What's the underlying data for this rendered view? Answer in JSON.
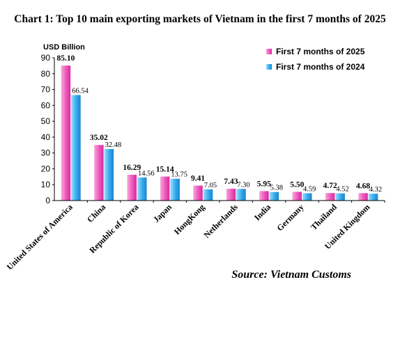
{
  "chart_data": {
    "type": "bar",
    "title": "Chart 1: Top 10 main exporting markets of Vietnam in the first 7 months of 2025",
    "ylabel": "USD Billion",
    "ylim": [
      0,
      90
    ],
    "yticks": [
      "0",
      "10",
      "20",
      "30",
      "40",
      "50",
      "60",
      "70",
      "80",
      "90"
    ],
    "categories": [
      "United States of America",
      "China",
      "Republic of Korea",
      "Japan",
      "HongKong",
      "Netherlands",
      "India",
      "Germany",
      "Thailand",
      "United Kingdom"
    ],
    "series": [
      {
        "name": "First 7 months of 2025",
        "color": "#ee55bb",
        "values": [
          85.1,
          35.02,
          16.29,
          15.14,
          9.41,
          7.43,
          5.95,
          5.5,
          4.72,
          4.68
        ],
        "labels": [
          "85.10",
          "35.02",
          "16.29",
          "15.14",
          "9.41",
          "7.43",
          "5.95",
          "5.50",
          "4.72",
          "4.68"
        ]
      },
      {
        "name": "First 7 months of 2024",
        "color": "#33aaee",
        "values": [
          66.54,
          32.48,
          14.56,
          13.75,
          7.05,
          7.3,
          5.38,
          4.59,
          4.52,
          4.32
        ],
        "labels": [
          "66.54",
          "32.48",
          "14.56",
          "13.75",
          "7.05",
          "7.30",
          "5.38",
          "4.59",
          "4.52",
          "4.32"
        ]
      }
    ],
    "legend_position": "top-right",
    "grid": false
  },
  "source_note": "Source: Vietnam Customs"
}
